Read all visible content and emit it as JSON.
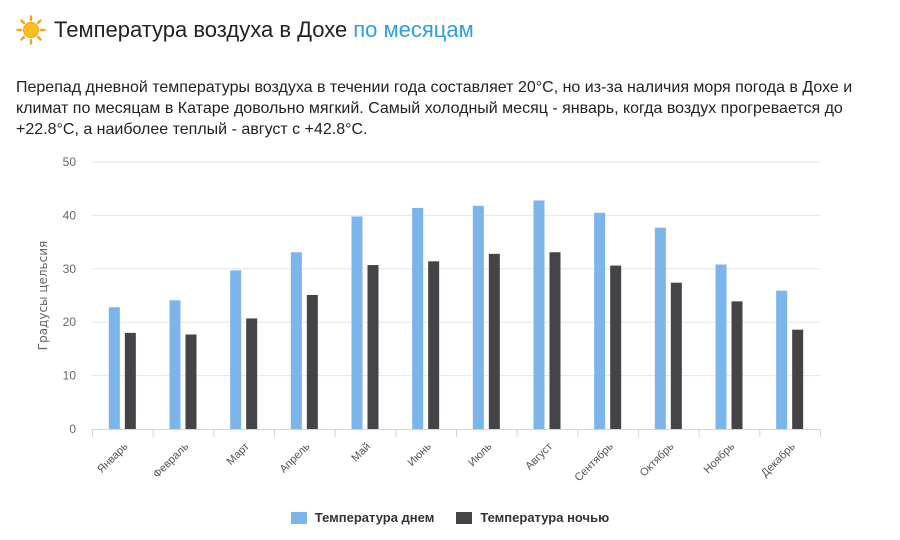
{
  "header": {
    "title": "Температура воздуха в Дохе",
    "title_accent": "по месяцам",
    "icon": "sun-icon"
  },
  "intro_text": "Перепад дневной температуры воздуха в течении года составляет 20°C, но из-за наличия моря погода в Дохе и климат по месяцам в Катаре довольно мягкий. Самый холодный месяц - январь, когда воздух прогревается до +22.8°C, а наиболее теплый - август с +42.8°C.",
  "colors": {
    "day": "#7cb5ec",
    "night": "#434348",
    "accent": "#2d9ee0",
    "grid": "#e6e6e6",
    "axis": "#ccd6eb"
  },
  "chart_data": {
    "type": "bar",
    "title": "",
    "xlabel": "",
    "ylabel": "Градусы цельсия",
    "ylim": [
      0,
      50
    ],
    "yticks": [
      0,
      10,
      20,
      30,
      40,
      50
    ],
    "grid": true,
    "legend": "bottom-center",
    "categories": [
      "Январь",
      "Февраль",
      "Март",
      "Апрель",
      "Май",
      "Июнь",
      "Июль",
      "Август",
      "Сентябрь",
      "Октябрь",
      "Ноябрь",
      "Декабрь"
    ],
    "series": [
      {
        "name": "Температура днем",
        "color": "#7cb5ec",
        "values": [
          22.8,
          24.1,
          29.7,
          33.1,
          39.8,
          41.4,
          41.8,
          42.8,
          40.5,
          37.7,
          30.8,
          25.9
        ]
      },
      {
        "name": "Температура ночью",
        "color": "#434348",
        "values": [
          18.0,
          17.7,
          20.7,
          25.1,
          30.7,
          31.4,
          32.8,
          33.1,
          30.6,
          27.4,
          23.9,
          18.6
        ]
      }
    ]
  }
}
